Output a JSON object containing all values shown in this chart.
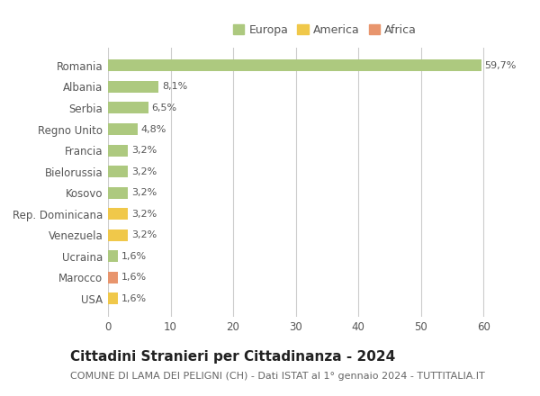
{
  "categories": [
    "Romania",
    "Albania",
    "Serbia",
    "Regno Unito",
    "Francia",
    "Bielorussia",
    "Kosovo",
    "Rep. Dominicana",
    "Venezuela",
    "Ucraina",
    "Marocco",
    "USA"
  ],
  "values": [
    59.7,
    8.1,
    6.5,
    4.8,
    3.2,
    3.2,
    3.2,
    3.2,
    3.2,
    1.6,
    1.6,
    1.6
  ],
  "labels": [
    "59,7%",
    "8,1%",
    "6,5%",
    "4,8%",
    "3,2%",
    "3,2%",
    "3,2%",
    "3,2%",
    "3,2%",
    "1,6%",
    "1,6%",
    "1,6%"
  ],
  "continents": [
    "Europa",
    "Europa",
    "Europa",
    "Europa",
    "Europa",
    "Europa",
    "Europa",
    "America",
    "America",
    "Europa",
    "Africa",
    "America"
  ],
  "colors": {
    "Europa": "#adc97f",
    "America": "#f0c84a",
    "Africa": "#e8956d"
  },
  "xlim": [
    0,
    63
  ],
  "xticks": [
    0,
    10,
    20,
    30,
    40,
    50,
    60
  ],
  "title": "Cittadini Stranieri per Cittadinanza - 2024",
  "subtitle": "COMUNE DI LAMA DEI PELIGNI (CH) - Dati ISTAT al 1° gennaio 2024 - TUTTITALIA.IT",
  "title_fontsize": 11,
  "subtitle_fontsize": 8,
  "background_color": "#ffffff",
  "grid_color": "#cccccc",
  "bar_height": 0.55,
  "label_fontsize": 8,
  "ytick_fontsize": 8.5,
  "legend_items": [
    "Europa",
    "America",
    "Africa"
  ]
}
